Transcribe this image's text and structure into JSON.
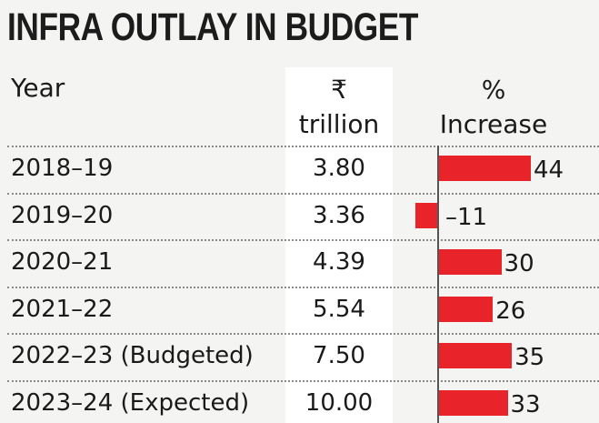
{
  "title": "INFRA OUTLAY IN BUDGET",
  "headers": {
    "year": "Year",
    "value_line1": "₹",
    "value_line2": "trillion",
    "pct_line1": "%",
    "pct_line2": "Increase"
  },
  "colors": {
    "bar": "#e8232a",
    "highlight_column": "#ffffff",
    "background": "#f4f4f2"
  },
  "chart_data": {
    "type": "table",
    "title": "INFRA OUTLAY IN BUDGET",
    "columns": [
      "Year",
      "₹ trillion",
      "% Increase"
    ],
    "rows": [
      {
        "year": "2018–19",
        "value": "3.80",
        "pct": 44
      },
      {
        "year": "2019–20",
        "value": "3.36",
        "pct": -11
      },
      {
        "year": "2020–21",
        "value": "4.39",
        "pct": 30
      },
      {
        "year": "2021–22",
        "value": "5.54",
        "pct": 26
      },
      {
        "year": "2022–23 (Budgeted)",
        "value": "7.50",
        "pct": 35
      },
      {
        "year": "2023–24 (Expected)",
        "value": "10.00",
        "pct": 33
      }
    ],
    "bar_series": {
      "name": "% Increase",
      "type": "bar",
      "orientation": "horizontal",
      "xlim": [
        -15,
        50
      ]
    }
  }
}
